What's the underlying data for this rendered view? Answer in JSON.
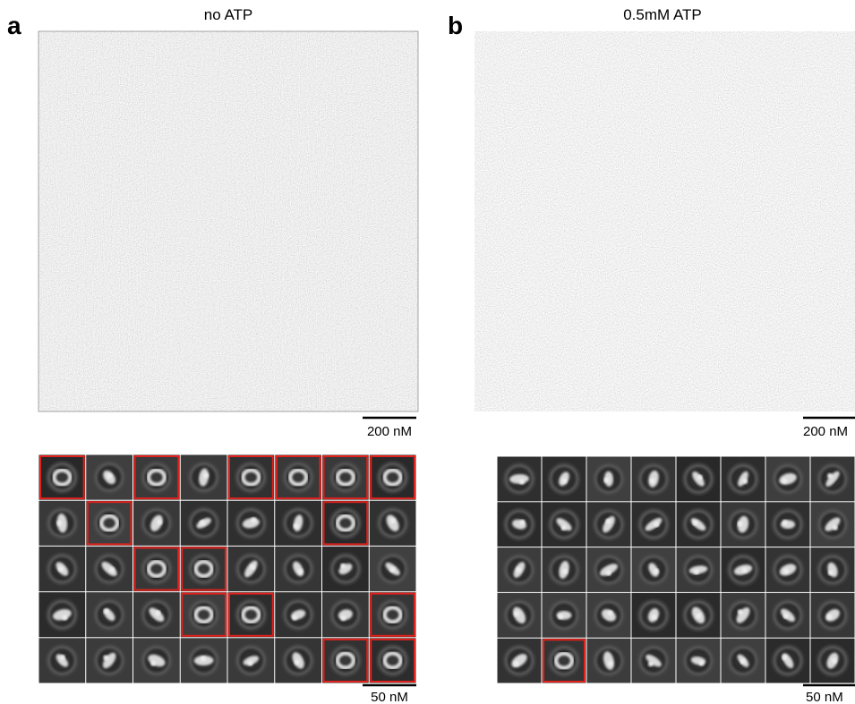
{
  "panels": [
    {
      "label": "a",
      "title": "no ATP",
      "micrograph_scale": "200 nM",
      "class_scale": "50 nM"
    },
    {
      "label": "b",
      "title": "0.5mM ATP",
      "micrograph_scale": "200 nM",
      "class_scale": "50 nM"
    }
  ]
}
